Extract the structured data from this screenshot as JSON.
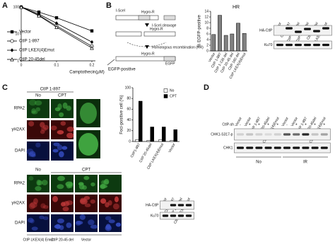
{
  "panel_letters": [
    "A",
    "B",
    "C",
    "D"
  ],
  "chart_data": [
    {
      "type": "line",
      "xlabel": "Camptothecin(μM)",
      "x": [
        0,
        0.05,
        0.1,
        0.2
      ],
      "xlim": [
        0,
        0.21
      ],
      "xticks": [
        0,
        0.1,
        0.2
      ],
      "ylim": [
        1,
        100
      ],
      "yticks": [
        1,
        10,
        100
      ],
      "ylog": true,
      "series": [
        {
          "name": "Vector",
          "color": "#000000",
          "marker": "square",
          "values": [
            100,
            65,
            40,
            13
          ]
        },
        {
          "name": "CtIP 1-897",
          "color": "#000000",
          "marker": "circle",
          "values": [
            100,
            50,
            20,
            3.5
          ]
        },
        {
          "name": "CtIP LKEX(4)Emut",
          "color": "#000000",
          "marker": "diamond",
          "values": [
            100,
            55,
            25,
            5
          ]
        },
        {
          "name": "CtIP 20-45del",
          "color": "#000000",
          "marker": "triangle",
          "values": [
            100,
            48,
            18,
            3
          ]
        }
      ]
    },
    {
      "type": "bar",
      "title": "HR",
      "ylabel": "% EGFP-positive",
      "categories": [
        "Vector",
        "CtIP 1-897",
        "CtIP 1-135 del",
        "CtIP 20-45 del",
        "CtIP 160 del",
        "CtIP LKEX(4)Emut"
      ],
      "values": [
        5.8,
        12.6,
        5.5,
        6.0,
        9.8,
        6.2
      ],
      "color": "#808080",
      "ylim": [
        0,
        14
      ],
      "yticks": [
        0,
        2,
        4,
        6,
        8,
        10,
        12,
        14
      ]
    },
    {
      "type": "bar",
      "ylabel": "Foci-positive cell (%)",
      "categories": [
        "CtIP1-897",
        "CtIP 20-45del",
        "CtIP LKEX(4)Emut",
        "Vector"
      ],
      "series": [
        {
          "name": "No",
          "color": "#ffffff",
          "values": [
            3,
            2,
            3,
            2
          ]
        },
        {
          "name": "CPT",
          "color": "#000000",
          "values": [
            75,
            27,
            27,
            22
          ]
        }
      ],
      "ylim": [
        0,
        100
      ],
      "yticks": [
        0,
        20,
        40,
        60,
        80,
        100
      ],
      "legend": "top-right"
    }
  ],
  "diagram_b": {
    "isce": "I-SceI",
    "hygro": "Hygro-R",
    "cleavage": "I-SceI cleavage",
    "hr": "Homologous recombination (HR)",
    "egfp_positive": "EGFP-positive",
    "egfp": "EGFP"
  },
  "blot_b": {
    "lanes": [
      "Vector",
      "CtIP 1-897",
      "CtIP 1-135 del",
      "CtIP 20-45 del",
      "CtIP 160 del",
      "CtIP LKEX(4)Emut"
    ],
    "rows": [
      "HA-CtIP",
      "Ku70"
    ]
  },
  "imaging_c": {
    "construct": "CtIP 1-897",
    "conditions": [
      "No",
      "CPT"
    ],
    "channels": [
      "RPA2",
      "γH2AX",
      "DAPI"
    ],
    "lower_conditions": [
      "No",
      "CPT"
    ],
    "lower_constructs": [
      "CtIP LKEX(4) Emut",
      "CtIP 20-45 del",
      "Vector"
    ]
  },
  "blot_c": {
    "lanes": [
      "Vector",
      "CtIP 1-897",
      "CtIP 20-45del",
      "CtIP LKEX(4)Emut"
    ],
    "rows": [
      "HA-CtIP",
      "Ku70"
    ]
  },
  "blot_d": {
    "lanes": [
      "Vector",
      "Vector",
      "CtIP 1-897",
      "CtIP 20-45del",
      "CtIP LKEX(4)Emut",
      "Vector",
      "Vector",
      "CtIP 1-897",
      "CtIP 20-45del",
      "CtIP LKEX(4)Emut"
    ],
    "shrna_label": "CtIP-sh",
    "shrna": [
      "-",
      "+",
      "+",
      "+",
      "+",
      "-",
      "+",
      "+",
      "+",
      "+"
    ],
    "rows": [
      "CHK1-S317-p",
      "CHK1"
    ],
    "groups": [
      "No",
      "IR"
    ]
  }
}
